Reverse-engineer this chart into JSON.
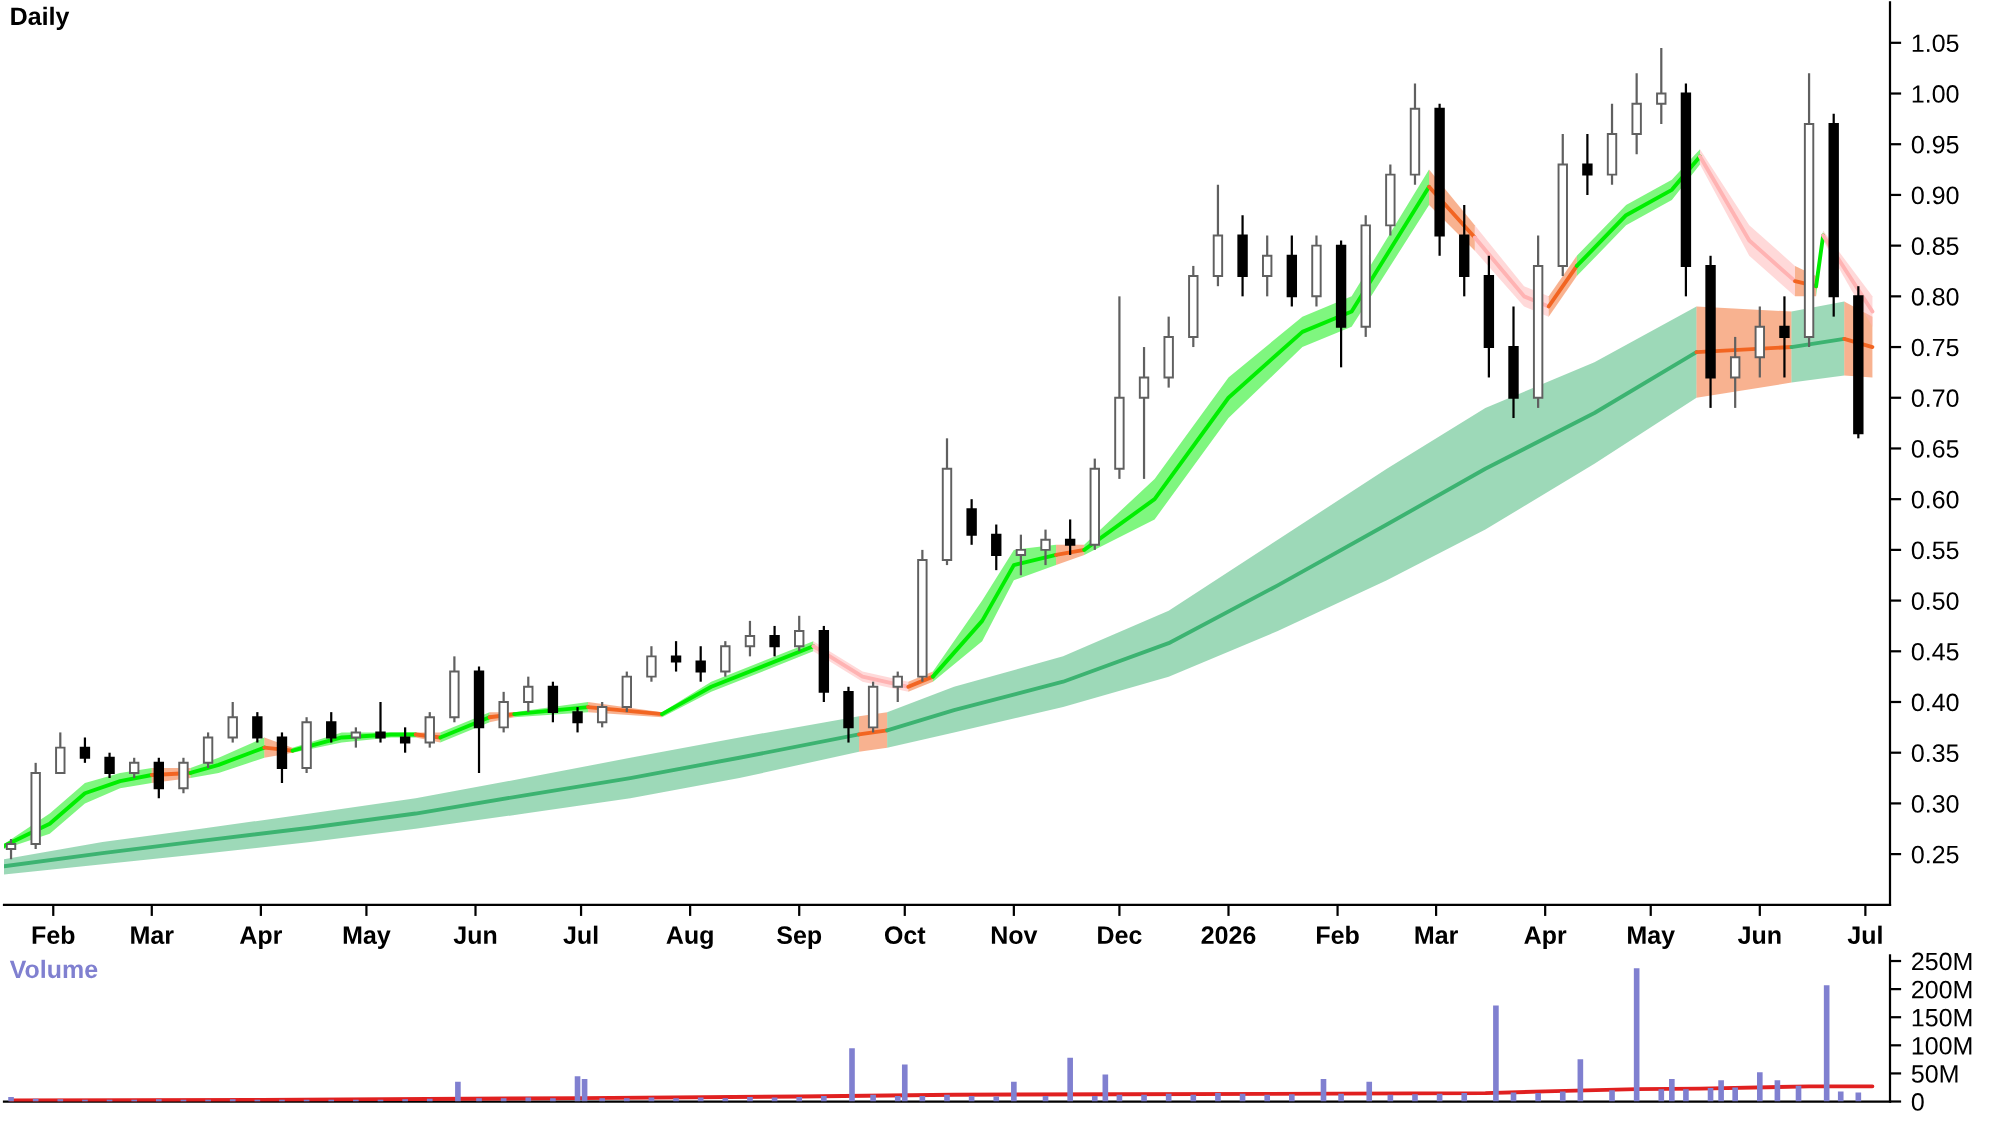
{
  "chart_data": [
    {
      "type": "candlestick",
      "title": "Daily",
      "x": [
        "2025-01-20",
        "2025-01-27",
        "2025-02-03",
        "2025-02-10",
        "2025-02-17",
        "2025-02-24",
        "2025-03-03",
        "2025-03-10",
        "2025-03-17",
        "2025-03-24",
        "2025-03-31",
        "2025-04-07",
        "2025-04-14",
        "2025-04-21",
        "2025-04-28",
        "2025-05-05",
        "2025-05-12",
        "2025-05-19",
        "2025-05-26",
        "2025-06-02",
        "2025-06-09",
        "2025-06-16",
        "2025-06-23",
        "2025-06-30",
        "2025-07-07",
        "2025-07-14",
        "2025-07-21",
        "2025-07-28",
        "2025-08-04",
        "2025-08-11",
        "2025-08-18",
        "2025-08-25",
        "2025-09-01",
        "2025-09-08",
        "2025-09-15",
        "2025-09-22",
        "2025-09-29",
        "2025-10-06",
        "2025-10-13",
        "2025-10-20",
        "2025-10-27",
        "2025-11-03",
        "2025-11-10",
        "2025-11-17",
        "2025-11-24",
        "2025-12-01",
        "2025-12-08",
        "2025-12-15",
        "2025-12-22",
        "2025-12-29",
        "2026-01-05",
        "2026-01-12",
        "2026-01-19",
        "2026-01-26",
        "2026-02-02",
        "2026-02-09",
        "2026-02-16",
        "2026-02-23",
        "2026-03-02",
        "2026-03-09",
        "2026-03-16",
        "2026-03-23",
        "2026-03-30",
        "2026-04-06",
        "2026-04-13",
        "2026-04-20",
        "2026-04-27",
        "2026-05-04",
        "2026-05-11",
        "2026-05-18",
        "2026-05-25",
        "2026-06-01",
        "2026-06-08",
        "2026-06-15",
        "2026-06-22",
        "2026-06-29"
      ],
      "ohlc": [
        [
          0.255,
          0.265,
          0.245,
          0.26
        ],
        [
          0.26,
          0.34,
          0.255,
          0.33
        ],
        [
          0.33,
          0.37,
          0.33,
          0.355
        ],
        [
          0.355,
          0.365,
          0.34,
          0.345
        ],
        [
          0.345,
          0.35,
          0.325,
          0.33
        ],
        [
          0.33,
          0.345,
          0.325,
          0.34
        ],
        [
          0.34,
          0.345,
          0.305,
          0.315
        ],
        [
          0.315,
          0.345,
          0.31,
          0.34
        ],
        [
          0.34,
          0.37,
          0.335,
          0.365
        ],
        [
          0.365,
          0.4,
          0.36,
          0.385
        ],
        [
          0.385,
          0.39,
          0.36,
          0.365
        ],
        [
          0.365,
          0.37,
          0.32,
          0.335
        ],
        [
          0.335,
          0.385,
          0.33,
          0.38
        ],
        [
          0.38,
          0.39,
          0.36,
          0.365
        ],
        [
          0.365,
          0.375,
          0.355,
          0.37
        ],
        [
          0.37,
          0.4,
          0.36,
          0.365
        ],
        [
          0.365,
          0.375,
          0.35,
          0.36
        ],
        [
          0.36,
          0.39,
          0.355,
          0.385
        ],
        [
          0.385,
          0.445,
          0.38,
          0.43
        ],
        [
          0.43,
          0.435,
          0.33,
          0.375
        ],
        [
          0.375,
          0.41,
          0.37,
          0.4
        ],
        [
          0.4,
          0.425,
          0.39,
          0.415
        ],
        [
          0.415,
          0.42,
          0.38,
          0.39
        ],
        [
          0.39,
          0.395,
          0.37,
          0.38
        ],
        [
          0.38,
          0.4,
          0.375,
          0.395
        ],
        [
          0.395,
          0.43,
          0.39,
          0.425
        ],
        [
          0.425,
          0.455,
          0.42,
          0.445
        ],
        [
          0.445,
          0.46,
          0.43,
          0.44
        ],
        [
          0.44,
          0.455,
          0.42,
          0.43
        ],
        [
          0.43,
          0.46,
          0.425,
          0.455
        ],
        [
          0.455,
          0.48,
          0.445,
          0.465
        ],
        [
          0.465,
          0.475,
          0.445,
          0.455
        ],
        [
          0.455,
          0.485,
          0.45,
          0.47
        ],
        [
          0.47,
          0.475,
          0.4,
          0.41
        ],
        [
          0.41,
          0.415,
          0.36,
          0.375
        ],
        [
          0.375,
          0.42,
          0.37,
          0.415
        ],
        [
          0.415,
          0.43,
          0.4,
          0.425
        ],
        [
          0.425,
          0.55,
          0.42,
          0.54
        ],
        [
          0.54,
          0.66,
          0.535,
          0.63
        ],
        [
          0.59,
          0.6,
          0.555,
          0.565
        ],
        [
          0.565,
          0.575,
          0.53,
          0.545
        ],
        [
          0.545,
          0.565,
          0.525,
          0.55
        ],
        [
          0.55,
          0.57,
          0.535,
          0.56
        ],
        [
          0.56,
          0.58,
          0.545,
          0.555
        ],
        [
          0.555,
          0.64,
          0.55,
          0.63
        ],
        [
          0.63,
          0.8,
          0.62,
          0.7
        ],
        [
          0.7,
          0.75,
          0.62,
          0.72
        ],
        [
          0.72,
          0.78,
          0.71,
          0.76
        ],
        [
          0.76,
          0.83,
          0.75,
          0.82
        ],
        [
          0.82,
          0.91,
          0.81,
          0.86
        ],
        [
          0.86,
          0.88,
          0.8,
          0.82
        ],
        [
          0.82,
          0.86,
          0.8,
          0.84
        ],
        [
          0.84,
          0.86,
          0.79,
          0.8
        ],
        [
          0.8,
          0.86,
          0.79,
          0.85
        ],
        [
          0.85,
          0.855,
          0.73,
          0.77
        ],
        [
          0.77,
          0.88,
          0.76,
          0.87
        ],
        [
          0.87,
          0.93,
          0.86,
          0.92
        ],
        [
          0.92,
          1.01,
          0.91,
          0.985
        ],
        [
          0.985,
          0.99,
          0.84,
          0.86
        ],
        [
          0.86,
          0.89,
          0.8,
          0.82
        ],
        [
          0.82,
          0.84,
          0.72,
          0.75
        ],
        [
          0.75,
          0.79,
          0.68,
          0.7
        ],
        [
          0.7,
          0.86,
          0.69,
          0.83
        ],
        [
          0.83,
          0.96,
          0.82,
          0.93
        ],
        [
          0.93,
          0.96,
          0.9,
          0.92
        ],
        [
          0.92,
          0.99,
          0.91,
          0.96
        ],
        [
          0.96,
          1.02,
          0.94,
          0.99
        ],
        [
          0.99,
          1.045,
          0.97,
          1.0
        ],
        [
          1.0,
          1.01,
          0.8,
          0.83
        ],
        [
          0.83,
          0.84,
          0.69,
          0.72
        ],
        [
          0.72,
          0.76,
          0.69,
          0.74
        ],
        [
          0.74,
          0.79,
          0.72,
          0.77
        ],
        [
          0.77,
          0.8,
          0.72,
          0.76
        ],
        [
          0.76,
          1.02,
          0.75,
          0.97
        ],
        [
          0.97,
          0.98,
          0.78,
          0.8
        ],
        [
          0.8,
          0.81,
          0.66,
          0.665
        ]
      ],
      "series": [
        {
          "type": "line",
          "color": "#3cb371",
          "x": [
            "2025-01-18",
            "2025-02-15",
            "2025-03-15",
            "2025-04-15",
            "2025-05-15",
            "2025-06-15",
            "2025-07-15",
            "2025-08-15",
            "2025-09-18"
          ],
          "values": [
            0.238,
            0.251,
            0.263,
            0.276,
            0.29,
            0.308,
            0.325,
            0.345,
            0.368
          ],
          "upper": [
            0.245,
            0.262,
            0.275,
            0.29,
            0.305,
            0.325,
            0.345,
            0.365,
            0.386
          ],
          "lower": [
            0.23,
            0.24,
            0.25,
            0.262,
            0.275,
            0.29,
            0.305,
            0.325,
            0.351
          ]
        },
        {
          "type": "line",
          "color": "#f26522",
          "x": [
            "2025-09-18",
            "2025-09-26"
          ],
          "values": [
            0.368,
            0.372
          ],
          "upper": [
            0.386,
            0.39
          ],
          "lower": [
            0.351,
            0.355
          ]
        },
        {
          "type": "line",
          "color": "#3cb371",
          "x": [
            "2025-09-26",
            "2025-10-15",
            "2025-11-15",
            "2025-12-15",
            "2026-01-15",
            "2026-02-15",
            "2026-03-15",
            "2026-04-15",
            "2026-05-14"
          ],
          "values": [
            0.372,
            0.392,
            0.42,
            0.458,
            0.515,
            0.575,
            0.63,
            0.685,
            0.745
          ],
          "upper": [
            0.39,
            0.415,
            0.445,
            0.49,
            0.56,
            0.63,
            0.69,
            0.735,
            0.79
          ],
          "lower": [
            0.355,
            0.37,
            0.395,
            0.425,
            0.47,
            0.52,
            0.57,
            0.635,
            0.7
          ]
        },
        {
          "type": "line",
          "color": "#f26522",
          "x": [
            "2026-05-14",
            "2026-06-10"
          ],
          "values": [
            0.745,
            0.75
          ],
          "upper": [
            0.79,
            0.785
          ],
          "lower": [
            0.7,
            0.715
          ]
        },
        {
          "type": "line",
          "color": "#3cb371",
          "x": [
            "2026-06-10",
            "2026-06-25"
          ],
          "values": [
            0.75,
            0.758
          ],
          "upper": [
            0.785,
            0.795
          ],
          "lower": [
            0.715,
            0.722
          ]
        },
        {
          "type": "line",
          "color": "#f26522",
          "x": [
            "2026-06-25",
            "2026-07-03"
          ],
          "values": [
            0.758,
            0.75
          ],
          "upper": [
            0.795,
            0.78
          ],
          "lower": [
            0.722,
            0.72
          ]
        },
        {
          "type": "line",
          "color": "#00ee00",
          "x": [
            "2025-01-18",
            "2025-01-31",
            "2025-02-10",
            "2025-02-20",
            "2025-03-01"
          ],
          "values": [
            0.258,
            0.28,
            0.31,
            0.322,
            0.328
          ],
          "upper": [
            0.26,
            0.29,
            0.32,
            0.33,
            0.335
          ],
          "lower": [
            0.255,
            0.27,
            0.3,
            0.315,
            0.32
          ]
        },
        {
          "type": "line",
          "color": "#f26522",
          "x": [
            "2025-03-01",
            "2025-03-12"
          ],
          "values": [
            0.328,
            0.33
          ],
          "upper": [
            0.335,
            0.335
          ],
          "lower": [
            0.32,
            0.325
          ]
        },
        {
          "type": "line",
          "color": "#00ee00",
          "x": [
            "2025-03-12",
            "2025-03-20",
            "2025-04-02"
          ],
          "values": [
            0.33,
            0.338,
            0.355
          ],
          "upper": [
            0.335,
            0.345,
            0.365
          ],
          "lower": [
            0.325,
            0.33,
            0.345
          ]
        },
        {
          "type": "line",
          "color": "#f26522",
          "x": [
            "2025-04-02",
            "2025-04-10"
          ],
          "values": [
            0.355,
            0.352
          ],
          "upper": [
            0.365,
            0.355
          ],
          "lower": [
            0.345,
            0.35
          ]
        },
        {
          "type": "line",
          "color": "#00ee00",
          "x": [
            "2025-04-10",
            "2025-04-24",
            "2025-05-08",
            "2025-05-15"
          ],
          "values": [
            0.352,
            0.365,
            0.368,
            0.368
          ],
          "upper": [
            0.355,
            0.37,
            0.37,
            0.37
          ],
          "lower": [
            0.35,
            0.36,
            0.365,
            0.365
          ]
        },
        {
          "type": "line",
          "color": "#f26522",
          "x": [
            "2025-05-15",
            "2025-05-22"
          ],
          "values": [
            0.368,
            0.365
          ],
          "upper": [
            0.37,
            0.37
          ],
          "lower": [
            0.365,
            0.36
          ]
        },
        {
          "type": "line",
          "color": "#00ee00",
          "x": [
            "2025-05-22",
            "2025-06-05"
          ],
          "values": [
            0.365,
            0.385
          ],
          "upper": [
            0.37,
            0.39
          ],
          "lower": [
            0.36,
            0.38
          ]
        },
        {
          "type": "line",
          "color": "#f26522",
          "x": [
            "2025-06-05",
            "2025-06-12"
          ],
          "values": [
            0.385,
            0.388
          ],
          "upper": [
            0.39,
            0.39
          ],
          "lower": [
            0.38,
            0.385
          ]
        },
        {
          "type": "line",
          "color": "#00ee00",
          "x": [
            "2025-06-12",
            "2025-07-03"
          ],
          "values": [
            0.388,
            0.395
          ],
          "upper": [
            0.39,
            0.4
          ],
          "lower": [
            0.385,
            0.39
          ]
        },
        {
          "type": "line",
          "color": "#f26522",
          "x": [
            "2025-07-03",
            "2025-07-24"
          ],
          "values": [
            0.395,
            0.388
          ],
          "upper": [
            0.4,
            0.39
          ],
          "lower": [
            0.39,
            0.385
          ]
        },
        {
          "type": "line",
          "color": "#00ee00",
          "x": [
            "2025-07-24",
            "2025-08-07",
            "2025-09-05"
          ],
          "values": [
            0.388,
            0.415,
            0.455
          ],
          "upper": [
            0.39,
            0.42,
            0.46
          ],
          "lower": [
            0.385,
            0.41,
            0.45
          ]
        },
        {
          "type": "line",
          "color": "#ffb3b3",
          "x": [
            "2025-09-05",
            "2025-09-19",
            "2025-10-02"
          ],
          "values": [
            0.455,
            0.425,
            0.415
          ],
          "upper": [
            0.46,
            0.43,
            0.42
          ],
          "lower": [
            0.45,
            0.42,
            0.41
          ]
        },
        {
          "type": "line",
          "color": "#f26522",
          "x": [
            "2025-10-02",
            "2025-10-09"
          ],
          "values": [
            0.415,
            0.425
          ],
          "upper": [
            0.42,
            0.43
          ],
          "lower": [
            0.41,
            0.42
          ]
        },
        {
          "type": "line",
          "color": "#00ee00",
          "x": [
            "2025-10-09",
            "2025-10-23",
            "2025-11-01",
            "2025-11-13"
          ],
          "values": [
            0.425,
            0.48,
            0.535,
            0.545
          ],
          "upper": [
            0.43,
            0.5,
            0.55,
            0.555
          ],
          "lower": [
            0.42,
            0.46,
            0.52,
            0.535
          ]
        },
        {
          "type": "line",
          "color": "#f26522",
          "x": [
            "2025-11-13",
            "2025-11-21"
          ],
          "values": [
            0.545,
            0.55
          ],
          "upper": [
            0.555,
            0.555
          ],
          "lower": [
            0.535,
            0.545
          ]
        },
        {
          "type": "line",
          "color": "#00ee00",
          "x": [
            "2025-11-21",
            "2025-12-11",
            "2026-01-01",
            "2026-01-22",
            "2026-02-05",
            "2026-02-27"
          ],
          "values": [
            0.55,
            0.6,
            0.7,
            0.765,
            0.785,
            0.908
          ],
          "upper": [
            0.555,
            0.62,
            0.72,
            0.78,
            0.8,
            0.925
          ],
          "lower": [
            0.545,
            0.58,
            0.68,
            0.75,
            0.77,
            0.89
          ]
        },
        {
          "type": "line",
          "color": "#f26522",
          "x": [
            "2026-02-27",
            "2026-03-12"
          ],
          "values": [
            0.908,
            0.858
          ],
          "upper": [
            0.925,
            0.87
          ],
          "lower": [
            0.89,
            0.845
          ]
        },
        {
          "type": "line",
          "color": "#ffb3b3",
          "x": [
            "2026-03-12",
            "2026-03-26",
            "2026-04-02"
          ],
          "values": [
            0.858,
            0.8,
            0.79
          ],
          "upper": [
            0.87,
            0.81,
            0.8
          ],
          "lower": [
            0.845,
            0.79,
            0.78
          ]
        },
        {
          "type": "line",
          "color": "#f26522",
          "x": [
            "2026-04-02",
            "2026-04-10"
          ],
          "values": [
            0.79,
            0.83
          ],
          "upper": [
            0.8,
            0.84
          ],
          "lower": [
            0.78,
            0.82
          ]
        },
        {
          "type": "line",
          "color": "#00ee00",
          "x": [
            "2026-04-10",
            "2026-04-24",
            "2026-05-07",
            "2026-05-15"
          ],
          "values": [
            0.83,
            0.88,
            0.905,
            0.938
          ],
          "upper": [
            0.84,
            0.89,
            0.915,
            0.945
          ],
          "lower": [
            0.82,
            0.87,
            0.895,
            0.93
          ]
        },
        {
          "type": "line",
          "color": "#ffb3b3",
          "x": [
            "2026-05-15",
            "2026-05-29",
            "2026-06-11"
          ],
          "values": [
            0.938,
            0.855,
            0.815
          ],
          "upper": [
            0.945,
            0.87,
            0.83
          ],
          "lower": [
            0.93,
            0.84,
            0.8
          ]
        },
        {
          "type": "line",
          "color": "#f26522",
          "x": [
            "2026-06-11",
            "2026-06-17"
          ],
          "values": [
            0.815,
            0.81
          ],
          "upper": [
            0.83,
            0.82
          ],
          "lower": [
            0.8,
            0.8
          ]
        },
        {
          "type": "line",
          "color": "#00ee00",
          "x": [
            "2026-06-17",
            "2026-06-19"
          ],
          "values": [
            0.81,
            0.86
          ],
          "upper": [
            0.82,
            0.865
          ],
          "lower": [
            0.8,
            0.855
          ]
        },
        {
          "type": "line",
          "color": "#ffb3b3",
          "x": [
            "2026-06-19",
            "2026-07-03"
          ],
          "values": [
            0.86,
            0.785
          ],
          "upper": [
            0.865,
            0.8
          ],
          "lower": [
            0.855,
            0.77
          ]
        }
      ],
      "xlim": [
        "2025-01-18",
        "2026-07-08"
      ],
      "xticks": [
        {
          "value": "2025-02-01",
          "label": "Feb"
        },
        {
          "value": "2025-03-01",
          "label": "Mar"
        },
        {
          "value": "2025-04-01",
          "label": "Apr"
        },
        {
          "value": "2025-05-01",
          "label": "May"
        },
        {
          "value": "2025-06-01",
          "label": "Jun"
        },
        {
          "value": "2025-07-01",
          "label": "Jul"
        },
        {
          "value": "2025-08-01",
          "label": "Aug"
        },
        {
          "value": "2025-09-01",
          "label": "Sep"
        },
        {
          "value": "2025-10-01",
          "label": "Oct"
        },
        {
          "value": "2025-11-01",
          "label": "Nov"
        },
        {
          "value": "2025-12-01",
          "label": "Dec"
        },
        {
          "value": "2026-01-01",
          "label": "2026"
        },
        {
          "value": "2026-02-01",
          "label": "Feb"
        },
        {
          "value": "2026-03-01",
          "label": "Mar"
        },
        {
          "value": "2026-04-01",
          "label": "Apr"
        },
        {
          "value": "2026-05-01",
          "label": "May"
        },
        {
          "value": "2026-06-01",
          "label": "Jun"
        },
        {
          "value": "2026-07-01",
          "label": "Jul"
        }
      ],
      "ylim": [
        0.2,
        1.09
      ],
      "yticks": [
        {
          "value": 0.25,
          "label": "0.25"
        },
        {
          "value": 0.3,
          "label": "0.30"
        },
        {
          "value": 0.35,
          "label": "0.35"
        },
        {
          "value": 0.4,
          "label": "0.40"
        },
        {
          "value": 0.45,
          "label": "0.45"
        },
        {
          "value": 0.5,
          "label": "0.50"
        },
        {
          "value": 0.55,
          "label": "0.55"
        },
        {
          "value": 0.6,
          "label": "0.60"
        },
        {
          "value": 0.65,
          "label": "0.65"
        },
        {
          "value": 0.7,
          "label": "0.70"
        },
        {
          "value": 0.75,
          "label": "0.75"
        },
        {
          "value": 0.8,
          "label": "0.80"
        },
        {
          "value": 0.85,
          "label": "0.85"
        },
        {
          "value": 0.9,
          "label": "0.90"
        },
        {
          "value": 0.95,
          "label": "0.95"
        },
        {
          "value": 1.0,
          "label": "1.00"
        },
        {
          "value": 1.05,
          "label": "1.05"
        }
      ]
    },
    {
      "type": "bar",
      "title": "Volume",
      "tick_labels": "y",
      "series": [
        {
          "type": "bar",
          "color": "#8080d0",
          "x": [
            "2025-01-20",
            "2025-01-27",
            "2025-02-03",
            "2025-02-10",
            "2025-02-17",
            "2025-02-24",
            "2025-03-03",
            "2025-03-10",
            "2025-03-17",
            "2025-03-24",
            "2025-03-31",
            "2025-04-07",
            "2025-04-14",
            "2025-04-21",
            "2025-04-28",
            "2025-05-05",
            "2025-05-12",
            "2025-05-19",
            "2025-05-27",
            "2025-06-02",
            "2025-06-09",
            "2025-06-16",
            "2025-06-23",
            "2025-06-30",
            "2025-07-02",
            "2025-07-07",
            "2025-07-14",
            "2025-07-21",
            "2025-07-28",
            "2025-08-04",
            "2025-08-11",
            "2025-08-18",
            "2025-08-25",
            "2025-09-01",
            "2025-09-08",
            "2025-09-16",
            "2025-09-22",
            "2025-09-29",
            "2025-10-01",
            "2025-10-06",
            "2025-10-13",
            "2025-10-20",
            "2025-10-27",
            "2025-11-01",
            "2025-11-10",
            "2025-11-17",
            "2025-11-24",
            "2025-11-27",
            "2025-12-01",
            "2025-12-08",
            "2025-12-15",
            "2025-12-22",
            "2025-12-29",
            "2026-01-05",
            "2026-01-12",
            "2026-01-19",
            "2026-01-28",
            "2026-02-02",
            "2026-02-10",
            "2026-02-16",
            "2026-02-23",
            "2026-03-02",
            "2026-03-09",
            "2026-03-18",
            "2026-03-23",
            "2026-03-30",
            "2026-04-06",
            "2026-04-11",
            "2026-04-20",
            "2026-04-27",
            "2026-05-04",
            "2026-05-07",
            "2026-05-11",
            "2026-05-18",
            "2026-05-21",
            "2026-05-25",
            "2026-06-01",
            "2026-06-06",
            "2026-06-12",
            "2026-06-20",
            "2026-06-24",
            "2026-06-29"
          ],
          "values": [
            8,
            5,
            4,
            3,
            3,
            3,
            4,
            3,
            3,
            4,
            3,
            3,
            3,
            3,
            3,
            3,
            4,
            5,
            35,
            6,
            6,
            7,
            6,
            45,
            40,
            6,
            6,
            7,
            6,
            7,
            6,
            8,
            7,
            8,
            10,
            95,
            12,
            10,
            66,
            10,
            12,
            10,
            9,
            35,
            10,
            78,
            10,
            48,
            12,
            12,
            14,
            12,
            15,
            14,
            12,
            13,
            40,
            14,
            35,
            12,
            13,
            14,
            15,
            171,
            16,
            15,
            18,
            75,
            20,
            237,
            22,
            40,
            22,
            24,
            38,
            25,
            52,
            38,
            28,
            207,
            18,
            16
          ]
        },
        {
          "type": "line",
          "color": "#e02020",
          "x": [
            "2025-01-20",
            "2025-04-01",
            "2025-07-01",
            "2025-09-01",
            "2025-10-15",
            "2025-12-01",
            "2026-02-01",
            "2026-03-15",
            "2026-04-01",
            "2026-04-27",
            "2026-05-15",
            "2026-06-15",
            "2026-07-03"
          ],
          "values": [
            2,
            3,
            6,
            9,
            12,
            13,
            14,
            15,
            18,
            22,
            23,
            27,
            27
          ]
        }
      ],
      "xlim": [
        "2025-01-18",
        "2026-07-08"
      ],
      "ylim": [
        0,
        260
      ],
      "yticks": [
        {
          "value": 0,
          "label": "0"
        },
        {
          "value": 50,
          "label": "50M"
        },
        {
          "value": 100,
          "label": "100M"
        },
        {
          "value": 150,
          "label": "150M"
        },
        {
          "value": 200,
          "label": "200M"
        },
        {
          "value": 250,
          "label": "250M"
        }
      ]
    }
  ]
}
